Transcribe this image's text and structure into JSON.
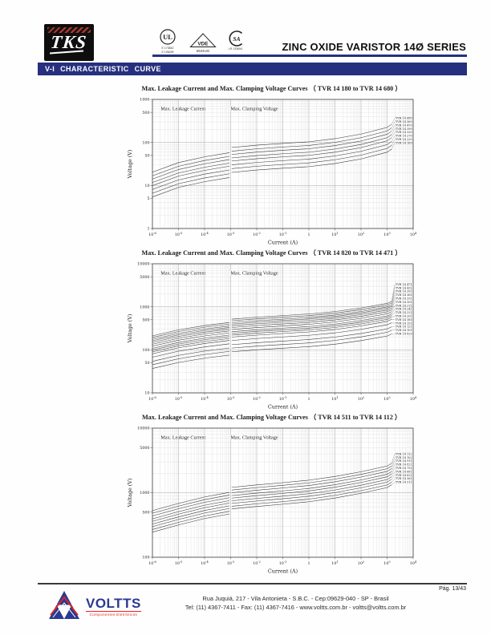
{
  "header": {
    "tks": "TKS",
    "ul_mark": "UL",
    "ul_file1": "E 173842",
    "ul_file2": "E 196499",
    "vde_mark": "VDE",
    "vde_code": "5944UG",
    "csa_mark": "SA",
    "csa_code": "LR 133694",
    "title": "ZINC OXIDE VARISTOR 14Ø SERIES"
  },
  "banner": {
    "label": "V-I  CHARACTERISTIC CURVE"
  },
  "footer": {
    "page": "Pág. 13/43",
    "brand": "VOLTTS",
    "brand_sub": "Componentes Eletrônicos",
    "address1": "Rua Juquiá, 217  -  Vila Antonieta  -  S.B.C.  -  Cep:09629-040  -  SP - Brasil",
    "address2": "Tel: (11) 4367-7411  -  Fax: (11) 4367-7416  -  www.voltts.com.br  -  voltts@voltts.com.br"
  },
  "chart_data": [
    {
      "type": "line",
      "x_scale": "log",
      "y_scale": "log",
      "title": "Max. Leakage Current and Max. Clamping Voltage Curves （ TVR 14 180 to TVR 14 680 ）",
      "xlabel": "Current   (A)",
      "ylabel": "Voltage   (V)",
      "leakage_label": "Max. Leakage Current",
      "clamping_label": "Max. Clamping Voltage",
      "x_range_exp": [
        -6,
        4
      ],
      "y_range_exp": [
        0,
        3
      ],
      "x_ticks": [
        {
          "exp": -6,
          "label": "10⁻⁶"
        },
        {
          "exp": -5,
          "label": "10⁻⁵"
        },
        {
          "exp": -4,
          "label": "10⁻⁴"
        },
        {
          "exp": -3,
          "label": "10⁻³"
        },
        {
          "exp": -2,
          "label": "10⁻²"
        },
        {
          "exp": -1,
          "label": "10⁻¹"
        },
        {
          "exp": 0,
          "label": "1"
        },
        {
          "exp": 1,
          "label": "10¹"
        },
        {
          "exp": 2,
          "label": "10²"
        },
        {
          "exp": 3,
          "label": "10³"
        },
        {
          "exp": 4,
          "label": "10⁴"
        }
      ],
      "y_ticks": [
        {
          "value": 1000,
          "label": "1000"
        },
        {
          "value": 500,
          "label": "500"
        },
        {
          "value": 100,
          "label": "100"
        },
        {
          "value": 50,
          "label": "50"
        },
        {
          "value": 10,
          "label": "10"
        },
        {
          "value": 5,
          "label": "5"
        },
        {
          "value": 1,
          "label": "1"
        }
      ],
      "leakage_anchors": {
        "x": [
          1e-06,
          1e-05,
          0.0001,
          0.0009
        ],
        "mult": [
          0.3,
          0.5,
          0.68,
          0.85
        ]
      },
      "clamping_anchors": {
        "x": [
          0.0011,
          0.01,
          0.1,
          1,
          10,
          100,
          1000,
          1500
        ],
        "mult": [
          1.12,
          1.27,
          1.4,
          1.52,
          1.8,
          2.3,
          3.3,
          3.9
        ]
      },
      "series": [
        {
          "name": "TVR 14 680",
          "v_nom": 68
        },
        {
          "name": "TVR 14 560",
          "v_nom": 56
        },
        {
          "name": "TVR 14 470",
          "v_nom": 47
        },
        {
          "name": "TVR 14 390",
          "v_nom": 39
        },
        {
          "name": "TVR 14 330",
          "v_nom": 33
        },
        {
          "name": "TVR 14 270",
          "v_nom": 27
        },
        {
          "name": "TVR 14 220",
          "v_nom": 22
        },
        {
          "name": "TVR 14 180",
          "v_nom": 18
        }
      ]
    },
    {
      "type": "line",
      "x_scale": "log",
      "y_scale": "log",
      "title": "Max. Leakage Current and Max. Clamping Voltage Curves （ TVR 14 820 to TVR 14 471 ）",
      "xlabel": "Current   (A)",
      "ylabel": "Voltage   (V)",
      "leakage_label": "Max. Leakage Current",
      "clamping_label": "Max. Clamping Voltage",
      "x_range_exp": [
        -6,
        4
      ],
      "y_range_exp": [
        1,
        4
      ],
      "x_ticks": [
        {
          "exp": -6,
          "label": "10⁻⁶"
        },
        {
          "exp": -5,
          "label": "10⁻⁵"
        },
        {
          "exp": -4,
          "label": "10⁻⁴"
        },
        {
          "exp": -3,
          "label": "10⁻³"
        },
        {
          "exp": -2,
          "label": "10⁻²"
        },
        {
          "exp": -1,
          "label": "10⁻¹"
        },
        {
          "exp": 0,
          "label": "1"
        },
        {
          "exp": 1,
          "label": "10¹"
        },
        {
          "exp": 2,
          "label": "10²"
        },
        {
          "exp": 3,
          "label": "10³"
        },
        {
          "exp": 4,
          "label": "10⁴"
        }
      ],
      "y_ticks": [
        {
          "value": 10000,
          "label": "10000"
        },
        {
          "value": 5000,
          "label": "5000"
        },
        {
          "value": 1000,
          "label": "1000"
        },
        {
          "value": 500,
          "label": "500"
        },
        {
          "value": 100,
          "label": "100"
        },
        {
          "value": 50,
          "label": "50"
        },
        {
          "value": 10,
          "label": "10"
        }
      ],
      "leakage_anchors": {
        "x": [
          1e-06,
          1e-05,
          0.0001,
          0.0009
        ],
        "mult": [
          0.45,
          0.62,
          0.78,
          0.92
        ]
      },
      "clamping_anchors": {
        "x": [
          0.0011,
          0.01,
          0.1,
          1,
          10,
          100,
          1000,
          1500
        ],
        "mult": [
          1.1,
          1.22,
          1.33,
          1.45,
          1.65,
          2.0,
          2.55,
          2.85
        ]
      },
      "series": [
        {
          "name": "TVR 14 471",
          "v_nom": 470
        },
        {
          "name": "TVR 14 431",
          "v_nom": 430
        },
        {
          "name": "TVR 14 391",
          "v_nom": 390
        },
        {
          "name": "TVR 14 361",
          "v_nom": 360
        },
        {
          "name": "TVR 14 331",
          "v_nom": 330
        },
        {
          "name": "TVR 14 301",
          "v_nom": 300
        },
        {
          "name": "TVR 14 271",
          "v_nom": 270
        },
        {
          "name": "TVR 14 241",
          "v_nom": 240
        },
        {
          "name": "TVR 14 221",
          "v_nom": 220
        },
        {
          "name": "TVR 14 201",
          "v_nom": 200
        },
        {
          "name": "TVR 14 181",
          "v_nom": 180
        },
        {
          "name": "TVR 14 151",
          "v_nom": 150
        },
        {
          "name": "TVR 14 121",
          "v_nom": 120
        },
        {
          "name": "TVR 14 101",
          "v_nom": 100
        },
        {
          "name": "TVR 14 820",
          "v_nom": 82
        }
      ]
    },
    {
      "type": "line",
      "x_scale": "log",
      "y_scale": "log",
      "title": "Max. Leakage Current and Max. Clamping Voltage Curves （ TVR 14 511 to TVR 14 112 ）",
      "xlabel": "Current   (A)",
      "ylabel": "Voltage   (V)",
      "leakage_label": "Max. Leakage Current",
      "clamping_label": "Max. Clamping Voltage",
      "x_range_exp": [
        -6,
        4
      ],
      "y_range_exp": [
        2,
        4
      ],
      "x_ticks": [
        {
          "exp": -6,
          "label": "10⁻⁶"
        },
        {
          "exp": -5,
          "label": "10⁻⁵"
        },
        {
          "exp": -4,
          "label": "10⁻⁴"
        },
        {
          "exp": -3,
          "label": "10⁻³"
        },
        {
          "exp": -2,
          "label": "10⁻²"
        },
        {
          "exp": -1,
          "label": "10⁻¹"
        },
        {
          "exp": 0,
          "label": "1"
        },
        {
          "exp": 1,
          "label": "10¹"
        },
        {
          "exp": 2,
          "label": "10²"
        },
        {
          "exp": 3,
          "label": "10³"
        },
        {
          "exp": 4,
          "label": "10⁴"
        }
      ],
      "y_ticks": [
        {
          "value": 10000,
          "label": "10000"
        },
        {
          "value": 5000,
          "label": "5000"
        },
        {
          "value": 1000,
          "label": "1000"
        },
        {
          "value": 500,
          "label": "500"
        },
        {
          "value": 100,
          "label": "100"
        }
      ],
      "leakage_anchors": {
        "x": [
          1e-06,
          1e-05,
          0.0001,
          0.0009
        ],
        "mult": [
          0.48,
          0.62,
          0.78,
          0.92
        ]
      },
      "clamping_anchors": {
        "x": [
          0.0011,
          0.01,
          0.1,
          1,
          10,
          100,
          1000,
          1500
        ],
        "mult": [
          1.1,
          1.2,
          1.3,
          1.42,
          1.62,
          1.92,
          2.35,
          2.6
        ]
      },
      "series": [
        {
          "name": "TVR 14 112",
          "v_nom": 1100
        },
        {
          "name": "TVR 14 102",
          "v_nom": 1000
        },
        {
          "name": "TVR 14 911",
          "v_nom": 910
        },
        {
          "name": "TVR 14 821",
          "v_nom": 820
        },
        {
          "name": "TVR 14 751",
          "v_nom": 750
        },
        {
          "name": "TVR 14 681",
          "v_nom": 680
        },
        {
          "name": "TVR 14 621",
          "v_nom": 620
        },
        {
          "name": "TVR 14 561",
          "v_nom": 560
        },
        {
          "name": "TVR 14 511",
          "v_nom": 510
        }
      ]
    }
  ]
}
